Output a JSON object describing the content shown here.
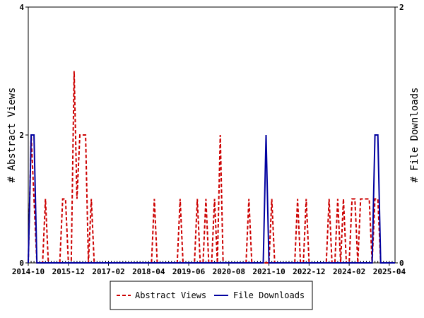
{
  "chart_data": {
    "type": "line",
    "title": "",
    "xlabel": "",
    "ylabel": "# Abstract Views",
    "y2label": "# File Downloads",
    "x_ticks": [
      "2014-10",
      "2015-12",
      "2017-02",
      "2018-04",
      "2019-06",
      "2020-08",
      "2021-10",
      "2022-12",
      "2024-02",
      "2025-04"
    ],
    "x_range": [
      "2014-10",
      "2025-06"
    ],
    "ylim": [
      0,
      4
    ],
    "y_ticks": [
      "0",
      "2",
      "4"
    ],
    "y2lim": [
      0,
      2
    ],
    "y2_ticks": [
      "0",
      "2"
    ],
    "grid": false,
    "legend_position": "bottom-center",
    "series": [
      {
        "name": "Abstract Views",
        "axis": "left",
        "color": "#cc0000",
        "style": "dashed",
        "points": [
          [
            "2014-10",
            0
          ],
          [
            "2014-11",
            2
          ],
          [
            "2014-12",
            1
          ],
          [
            "2015-01",
            0
          ],
          [
            "2015-02",
            0
          ],
          [
            "2015-03",
            0
          ],
          [
            "2015-04",
            1
          ],
          [
            "2015-05",
            0
          ],
          [
            "2015-06",
            0
          ],
          [
            "2015-07",
            0
          ],
          [
            "2015-08",
            0
          ],
          [
            "2015-09",
            0
          ],
          [
            "2015-10",
            1
          ],
          [
            "2015-11",
            1
          ],
          [
            "2015-12",
            0
          ],
          [
            "2016-01",
            0
          ],
          [
            "2016-02",
            3
          ],
          [
            "2016-03",
            1
          ],
          [
            "2016-04",
            2
          ],
          [
            "2016-05",
            2
          ],
          [
            "2016-06",
            2
          ],
          [
            "2016-07",
            0
          ],
          [
            "2016-08",
            1
          ],
          [
            "2016-09",
            0
          ],
          [
            "2016-10",
            0
          ],
          [
            "2018-05",
            0
          ],
          [
            "2018-06",
            1
          ],
          [
            "2018-07",
            0
          ],
          [
            "2019-02",
            0
          ],
          [
            "2019-03",
            1
          ],
          [
            "2019-04",
            0
          ],
          [
            "2019-08",
            0
          ],
          [
            "2019-09",
            1
          ],
          [
            "2019-10",
            0
          ],
          [
            "2019-11",
            0
          ],
          [
            "2019-12",
            1
          ],
          [
            "2020-01",
            0
          ],
          [
            "2020-02",
            0
          ],
          [
            "2020-03",
            1
          ],
          [
            "2020-04",
            0
          ],
          [
            "2020-05",
            2
          ],
          [
            "2020-06",
            0
          ],
          [
            "2021-02",
            0
          ],
          [
            "2021-03",
            1
          ],
          [
            "2021-04",
            0
          ],
          [
            "2021-09",
            0
          ],
          [
            "2021-10",
            0
          ],
          [
            "2021-11",
            1
          ],
          [
            "2021-12",
            0
          ],
          [
            "2022-07",
            0
          ],
          [
            "2022-08",
            1
          ],
          [
            "2022-09",
            0
          ],
          [
            "2022-10",
            0
          ],
          [
            "2022-11",
            1
          ],
          [
            "2022-12",
            0
          ],
          [
            "2023-06",
            0
          ],
          [
            "2023-07",
            1
          ],
          [
            "2023-08",
            0
          ],
          [
            "2023-09",
            0
          ],
          [
            "2023-10",
            1
          ],
          [
            "2023-11",
            0
          ],
          [
            "2023-12",
            1
          ],
          [
            "2024-01",
            0
          ],
          [
            "2024-02",
            0
          ],
          [
            "2024-03",
            1
          ],
          [
            "2024-04",
            1
          ],
          [
            "2024-05",
            0
          ],
          [
            "2024-06",
            1
          ],
          [
            "2024-07",
            1
          ],
          [
            "2024-08",
            1
          ],
          [
            "2024-09",
            1
          ],
          [
            "2024-10",
            0
          ],
          [
            "2024-11",
            1
          ],
          [
            "2024-12",
            1
          ],
          [
            "2025-01",
            0
          ],
          [
            "2025-06",
            0
          ]
        ]
      },
      {
        "name": "File Downloads",
        "axis": "right",
        "color": "#00009f",
        "style": "solid",
        "points": [
          [
            "2014-10",
            0
          ],
          [
            "2014-11",
            1
          ],
          [
            "2014-12",
            1
          ],
          [
            "2015-01",
            0
          ],
          [
            "2021-08",
            0
          ],
          [
            "2021-09",
            1
          ],
          [
            "2021-10",
            0
          ],
          [
            "2024-10",
            0
          ],
          [
            "2024-11",
            1
          ],
          [
            "2024-12",
            1
          ],
          [
            "2025-01",
            0
          ],
          [
            "2025-06",
            0
          ]
        ]
      }
    ]
  }
}
